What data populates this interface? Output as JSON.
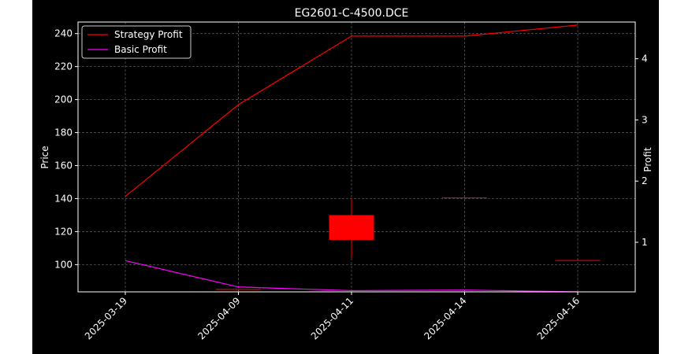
{
  "chart_data": {
    "type": "candlestick_with_lines",
    "title": "EG2601-C-4500.DCE",
    "xlabel": "",
    "ylabel_left": "Price",
    "ylabel_right": "Profit",
    "categories": [
      "2025-03-19",
      "2025-04-09",
      "2025-04-11",
      "2025-04-14",
      "2025-04-16"
    ],
    "candles": [
      {
        "date": "2025-03-19",
        "open": null,
        "high": null,
        "low": null,
        "close": null
      },
      {
        "date": "2025-04-09",
        "open": 85,
        "high": 85,
        "low": 85,
        "close": 85
      },
      {
        "date": "2025-04-11",
        "open": 130,
        "high": 140,
        "low": 104,
        "close": 115
      },
      {
        "date": "2025-04-14",
        "open": 140.5,
        "high": 140.5,
        "low": 140.5,
        "close": 140.5
      },
      {
        "date": "2025-04-16",
        "open": 102.5,
        "high": 102.5,
        "low": 102.5,
        "close": 102.5
      }
    ],
    "series": [
      {
        "name": "Strategy Profit",
        "axis": "right",
        "color": "#ff0000",
        "values": [
          1.75,
          3.25,
          4.37,
          4.37,
          4.55
        ]
      },
      {
        "name": "Basic Profit",
        "axis": "right",
        "color": "#ff00ff",
        "values": [
          0.7,
          0.27,
          0.21,
          0.22,
          0.19
        ]
      }
    ],
    "ylim_left": [
      83.5,
      247
    ],
    "ylim_right": [
      0.19,
      4.6
    ],
    "yticks_left": [
      "100",
      "120",
      "140",
      "160",
      "180",
      "200",
      "220",
      "240"
    ],
    "yticks_right": [
      "1",
      "2",
      "3",
      "4"
    ],
    "grid": true,
    "legend_position": "top-left",
    "candle_color": "#ff0000"
  }
}
